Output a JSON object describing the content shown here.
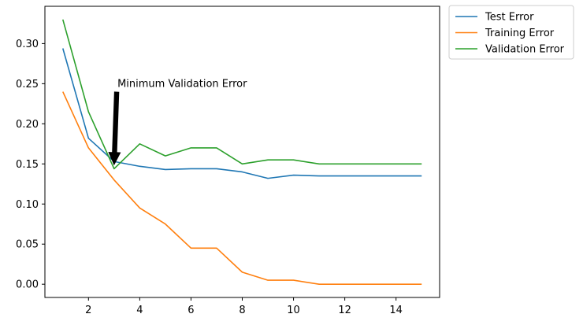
{
  "chart_data": {
    "type": "line",
    "title": "",
    "xlabel": "",
    "ylabel": "",
    "xlim": [
      0.3,
      15.7
    ],
    "ylim": [
      -0.0165,
      0.3465
    ],
    "x_ticks": [
      2,
      4,
      6,
      8,
      10,
      12,
      14
    ],
    "y_ticks": [
      0.0,
      0.05,
      0.1,
      0.15,
      0.2,
      0.25,
      0.3
    ],
    "x_tick_labels": [
      "2",
      "4",
      "6",
      "8",
      "10",
      "12",
      "14"
    ],
    "y_tick_labels": [
      "0.00",
      "0.05",
      "0.10",
      "0.15",
      "0.20",
      "0.25",
      "0.30"
    ],
    "grid": false,
    "legend_placement": "outside top-right",
    "x": [
      1,
      2,
      3,
      4,
      5,
      6,
      7,
      8,
      9,
      10,
      11,
      12,
      13,
      14,
      15
    ],
    "series": [
      {
        "name": "Test Error",
        "color": "#1f77b4",
        "values": [
          0.294,
          0.182,
          0.153,
          0.147,
          0.143,
          0.144,
          0.144,
          0.14,
          0.132,
          0.136,
          0.135,
          0.135,
          0.135,
          0.135,
          0.135
        ]
      },
      {
        "name": "Training Error",
        "color": "#ff7f0e",
        "values": [
          0.24,
          0.17,
          0.13,
          0.095,
          0.075,
          0.045,
          0.045,
          0.015,
          0.005,
          0.005,
          0.0,
          0.0,
          0.0,
          0.0,
          0.0
        ]
      },
      {
        "name": "Validation Error",
        "color": "#2ca02c",
        "values": [
          0.33,
          0.215,
          0.144,
          0.175,
          0.16,
          0.17,
          0.17,
          0.15,
          0.155,
          0.155,
          0.15,
          0.15,
          0.15,
          0.15,
          0.15
        ]
      }
    ],
    "annotation": {
      "text": "Minimum Validation Error",
      "point": [
        3,
        0.148
      ],
      "text_anchor_point": [
        3.1,
        0.24
      ]
    }
  }
}
